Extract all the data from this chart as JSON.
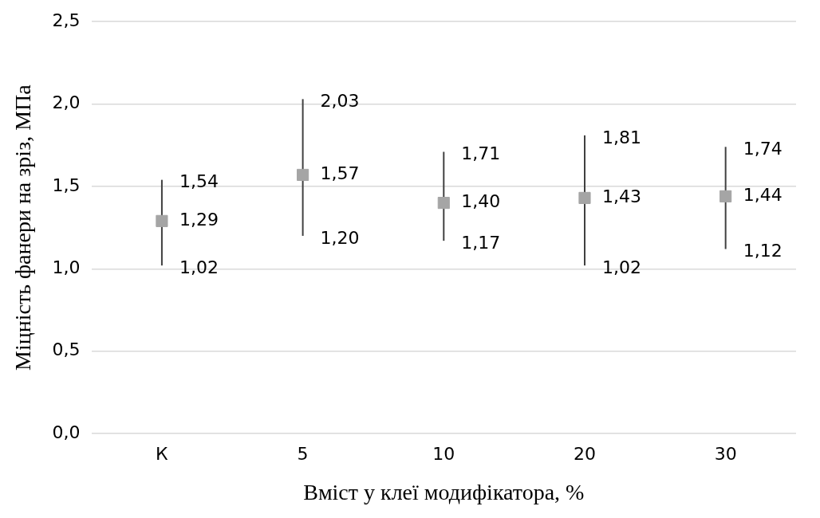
{
  "chart_data": {
    "type": "scatter",
    "ylabel": "Міцність фанери на зріз, МПа",
    "xlabel": "Вміст у клеї модифікатора, %",
    "categories": [
      "К",
      "5",
      "10",
      "20",
      "30"
    ],
    "values": [
      1.29,
      1.57,
      1.4,
      1.43,
      1.44
    ],
    "value_labels": [
      "1,29",
      "1,57",
      "1,40",
      "1,43",
      "1,44"
    ],
    "errors": [
      [
        1.02,
        1.54
      ],
      [
        1.2,
        2.03
      ],
      [
        1.17,
        1.71
      ],
      [
        1.02,
        1.81
      ],
      [
        1.12,
        1.74
      ]
    ],
    "annotations": [
      {
        "text": "1,54",
        "x": "К",
        "y": 1.54
      },
      {
        "text": "1,02",
        "x": "К",
        "y": 1.02
      },
      {
        "text": "2,03",
        "x": "5",
        "y": 2.03
      },
      {
        "text": "1,20",
        "x": "5",
        "y": 1.2
      },
      {
        "text": "1,71",
        "x": "10",
        "y": 1.71
      },
      {
        "text": "1,17",
        "x": "10",
        "y": 1.17
      },
      {
        "text": "1,81",
        "x": "20",
        "y": 1.81
      },
      {
        "text": "1,02",
        "x": "20",
        "y": 1.02
      },
      {
        "text": "1,74",
        "x": "30",
        "y": 1.74
      },
      {
        "text": "1,12",
        "x": "30",
        "y": 1.12
      }
    ],
    "color": "#a5a5a5",
    "marker": "square",
    "ylim": [
      0,
      2.5
    ],
    "yticks": [
      {
        "value": 0,
        "label": "0,0"
      },
      {
        "value": 0.5,
        "label": "0,5"
      },
      {
        "value": 1,
        "label": "1,0"
      },
      {
        "value": 1.5,
        "label": "1,5"
      },
      {
        "value": 2,
        "label": "2,0"
      },
      {
        "value": 2.5,
        "label": "2,5"
      }
    ],
    "grid": "y",
    "legend": false
  }
}
